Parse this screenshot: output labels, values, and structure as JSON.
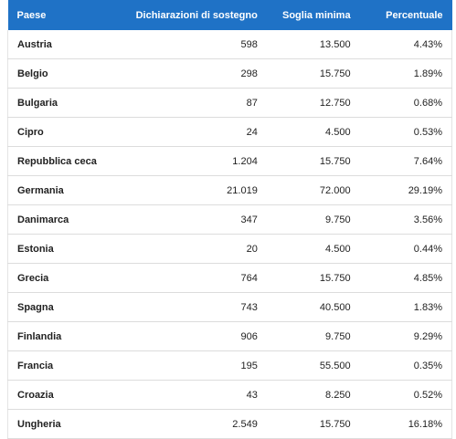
{
  "table": {
    "headers": [
      "Paese",
      "Dichiarazioni di sostegno",
      "Soglia minima",
      "Percentuale"
    ],
    "rows": [
      [
        "Austria",
        "598",
        "13.500",
        "4.43%"
      ],
      [
        "Belgio",
        "298",
        "15.750",
        "1.89%"
      ],
      [
        "Bulgaria",
        "87",
        "12.750",
        "0.68%"
      ],
      [
        "Cipro",
        "24",
        "4.500",
        "0.53%"
      ],
      [
        "Repubblica ceca",
        "1.204",
        "15.750",
        "7.64%"
      ],
      [
        "Germania",
        "21.019",
        "72.000",
        "29.19%"
      ],
      [
        "Danimarca",
        "347",
        "9.750",
        "3.56%"
      ],
      [
        "Estonia",
        "20",
        "4.500",
        "0.44%"
      ],
      [
        "Grecia",
        "764",
        "15.750",
        "4.85%"
      ],
      [
        "Spagna",
        "743",
        "40.500",
        "1.83%"
      ],
      [
        "Finlandia",
        "906",
        "9.750",
        "9.29%"
      ],
      [
        "Francia",
        "195",
        "55.500",
        "0.35%"
      ],
      [
        "Croazia",
        "43",
        "8.250",
        "0.52%"
      ],
      [
        "Ungheria",
        "2.549",
        "15.750",
        "16.18%"
      ]
    ]
  }
}
